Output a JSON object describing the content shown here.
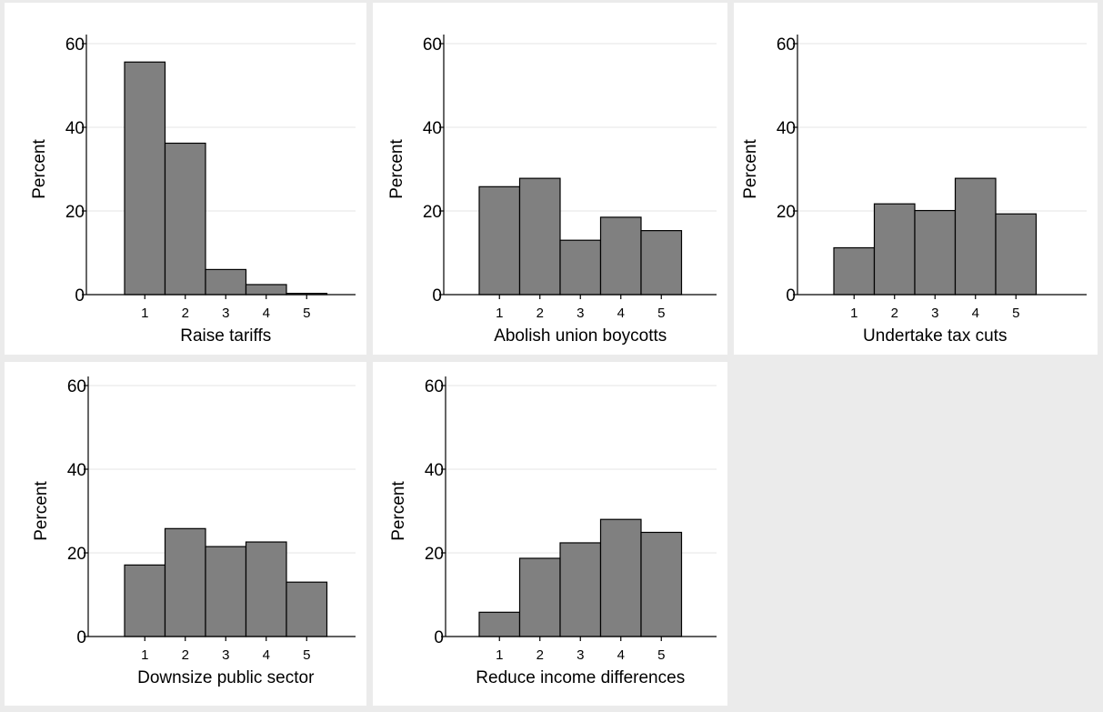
{
  "colors": {
    "background": "#ebebeb",
    "plot_region": "#ffffff",
    "bar_fill": "#808080",
    "bar_stroke": "#000000",
    "gridline": "#e6e6e6"
  },
  "chart_data": [
    {
      "type": "bar",
      "xlabel": "Raise tariffs",
      "ylabel": "Percent",
      "categories": [
        "1",
        "2",
        "3",
        "4",
        "5"
      ],
      "values": [
        55.6,
        36.2,
        6.0,
        2.4,
        0.3
      ],
      "ylim": [
        0,
        60
      ],
      "yticks": [
        0,
        20,
        40,
        60
      ],
      "grid": true
    },
    {
      "type": "bar",
      "xlabel": "Abolish union boycotts",
      "ylabel": "Percent",
      "categories": [
        "1",
        "2",
        "3",
        "4",
        "5"
      ],
      "values": [
        25.8,
        27.8,
        13.0,
        18.5,
        15.3
      ],
      "ylim": [
        0,
        60
      ],
      "yticks": [
        0,
        20,
        40,
        60
      ],
      "grid": true
    },
    {
      "type": "bar",
      "xlabel": "Undertake tax cuts",
      "ylabel": "Percent",
      "categories": [
        "1",
        "2",
        "3",
        "4",
        "5"
      ],
      "values": [
        11.2,
        21.7,
        20.1,
        27.8,
        19.3
      ],
      "ylim": [
        0,
        60
      ],
      "yticks": [
        0,
        20,
        40,
        60
      ],
      "grid": true
    },
    {
      "type": "bar",
      "xlabel": "Downsize public sector",
      "ylabel": "Percent",
      "categories": [
        "1",
        "2",
        "3",
        "4",
        "5"
      ],
      "values": [
        17.1,
        25.8,
        21.5,
        22.6,
        13.0
      ],
      "ylim": [
        0,
        60
      ],
      "yticks": [
        0,
        20,
        40,
        60
      ],
      "grid": true
    },
    {
      "type": "bar",
      "xlabel": "Reduce income differences",
      "ylabel": "Percent",
      "categories": [
        "1",
        "2",
        "3",
        "4",
        "5"
      ],
      "values": [
        5.8,
        18.7,
        22.4,
        28.0,
        24.9
      ],
      "ylim": [
        0,
        60
      ],
      "yticks": [
        0,
        20,
        40,
        60
      ],
      "grid": true
    }
  ]
}
